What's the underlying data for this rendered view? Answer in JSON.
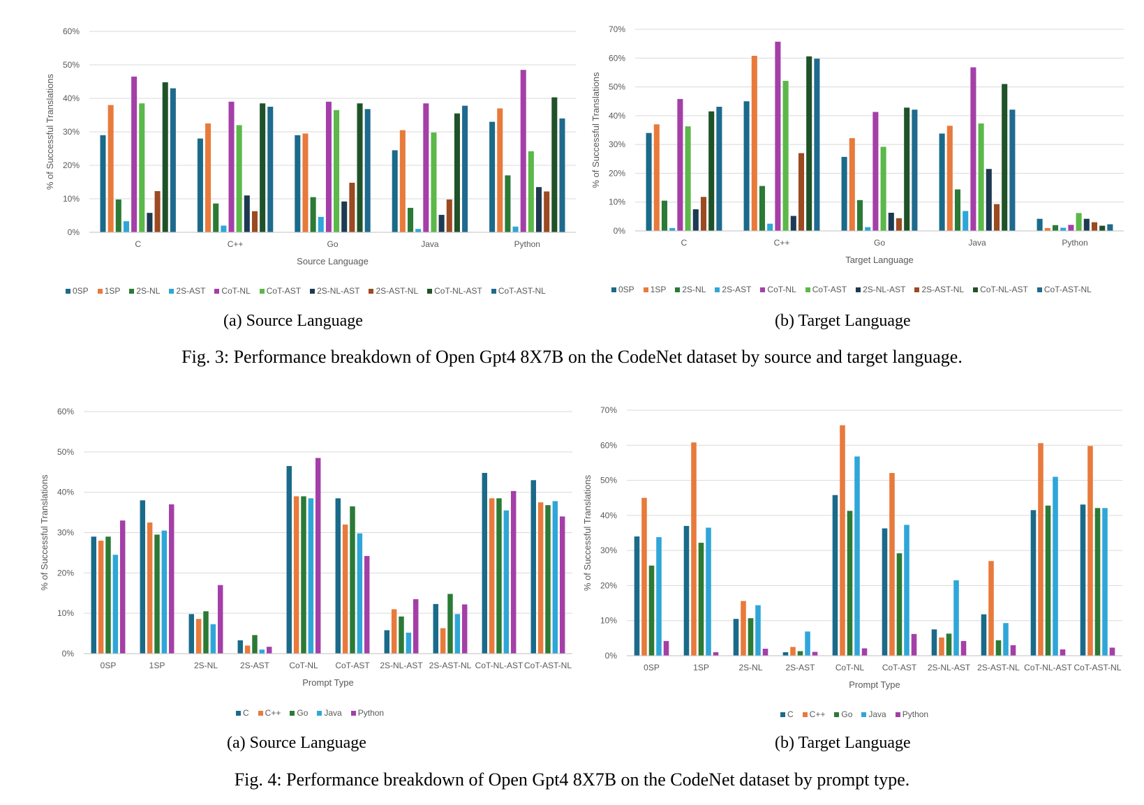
{
  "colors": {
    "0SP": "#1a6a8a",
    "1SP": "#e87a3c",
    "2S-NL": "#2b7a36",
    "2S-AST": "#2fa6d8",
    "CoT-NL": "#a43fa8",
    "CoT-AST": "#5bb849",
    "2S-NL-AST": "#1d3a52",
    "2S-AST-NL": "#9b4a21",
    "CoT-NL-AST": "#1f5228",
    "CoT-AST-NL": "#1f6a8e",
    "C": "#1a6a8a",
    "C++": "#e87a3c",
    "Go": "#2b7a36",
    "Java": "#2fa6d8",
    "Python": "#a43fa8"
  },
  "captions": {
    "fig3": "Fig. 3: Performance breakdown of Open Gpt4 8X7B on the CodeNet dataset by source and target language.",
    "fig4": "Fig. 4: Performance breakdown of Open Gpt4 8X7B on the CodeNet dataset by prompt type.",
    "fig3a": "(a) Source Language",
    "fig3b": "(b) Target Language",
    "fig4a": "(a) Source Language",
    "fig4b": "(b) Target Language"
  },
  "chart_data": [
    {
      "id": "fig3a",
      "type": "bar",
      "xlabel": "Source Language",
      "ylabel": "% of Successful Translations",
      "ylim": [
        0,
        60
      ],
      "yticks": [
        0,
        10,
        20,
        30,
        40,
        50,
        60
      ],
      "grid": true,
      "legend_position": "bottom",
      "categories": [
        "C",
        "C++",
        "Go",
        "Java",
        "Python"
      ],
      "series": [
        {
          "name": "0SP",
          "values": [
            29,
            28,
            29,
            24.5,
            33
          ]
        },
        {
          "name": "1SP",
          "values": [
            38,
            32.5,
            29.5,
            30.5,
            37
          ]
        },
        {
          "name": "2S-NL",
          "values": [
            9.8,
            8.6,
            10.5,
            7.3,
            17
          ]
        },
        {
          "name": "2S-AST",
          "values": [
            3.3,
            2,
            4.6,
            1,
            1.7
          ]
        },
        {
          "name": "CoT-NL",
          "values": [
            46.5,
            39,
            39,
            38.5,
            48.5
          ]
        },
        {
          "name": "CoT-AST",
          "values": [
            38.5,
            32,
            36.5,
            29.8,
            24.2
          ]
        },
        {
          "name": "2S-NL-AST",
          "values": [
            5.8,
            11,
            9.2,
            5.2,
            13.5
          ]
        },
        {
          "name": "2S-AST-NL",
          "values": [
            12.3,
            6.3,
            14.8,
            9.8,
            12.2
          ]
        },
        {
          "name": "CoT-NL-AST",
          "values": [
            44.8,
            38.5,
            38.5,
            35.5,
            40.3
          ]
        },
        {
          "name": "CoT-AST-NL",
          "values": [
            43,
            37.5,
            36.8,
            37.8,
            34
          ]
        }
      ]
    },
    {
      "id": "fig3b",
      "type": "bar",
      "xlabel": "Target Language",
      "ylabel": "% of Successful Translations",
      "ylim": [
        0,
        70
      ],
      "yticks": [
        0,
        10,
        20,
        30,
        40,
        50,
        60,
        70
      ],
      "grid": true,
      "legend_position": "bottom",
      "categories": [
        "C",
        "C++",
        "Go",
        "Java",
        "Python"
      ],
      "series": [
        {
          "name": "0SP",
          "values": [
            34,
            45,
            25.7,
            33.8,
            4.2
          ]
        },
        {
          "name": "1SP",
          "values": [
            37,
            60.8,
            32.2,
            36.5,
            1
          ]
        },
        {
          "name": "2S-NL",
          "values": [
            10.5,
            15.6,
            10.7,
            14.4,
            2
          ]
        },
        {
          "name": "2S-AST",
          "values": [
            1,
            2.5,
            1.3,
            6.9,
            1.1
          ]
        },
        {
          "name": "CoT-NL",
          "values": [
            45.8,
            65.7,
            41.3,
            56.8,
            2.1
          ]
        },
        {
          "name": "CoT-AST",
          "values": [
            36.3,
            52.1,
            29.2,
            37.3,
            6.2
          ]
        },
        {
          "name": "2S-NL-AST",
          "values": [
            7.5,
            5.2,
            6.3,
            21.5,
            4.2
          ]
        },
        {
          "name": "2S-AST-NL",
          "values": [
            11.8,
            27,
            4.4,
            9.3,
            3
          ]
        },
        {
          "name": "CoT-NL-AST",
          "values": [
            41.5,
            60.6,
            42.8,
            51,
            1.8
          ]
        },
        {
          "name": "CoT-AST-NL",
          "values": [
            43.1,
            59.8,
            42.1,
            42.1,
            2.3
          ]
        }
      ]
    },
    {
      "id": "fig4a",
      "type": "bar",
      "xlabel": "Prompt Type",
      "ylabel": "% of Successful Translations",
      "ylim": [
        0,
        60
      ],
      "yticks": [
        0,
        10,
        20,
        30,
        40,
        50,
        60
      ],
      "grid": true,
      "legend_position": "bottom",
      "categories": [
        "0SP",
        "1SP",
        "2S-NL",
        "2S-AST",
        "CoT-NL",
        "CoT-AST",
        "2S-NL-AST",
        "2S-AST-NL",
        "CoT-NL-AST",
        "CoT-AST-NL"
      ],
      "series": [
        {
          "name": "C",
          "values": [
            29,
            38,
            9.8,
            3.3,
            46.5,
            38.5,
            5.8,
            12.3,
            44.8,
            43
          ]
        },
        {
          "name": "C++",
          "values": [
            28,
            32.5,
            8.6,
            2,
            39,
            32,
            11,
            6.3,
            38.5,
            37.5
          ]
        },
        {
          "name": "Go",
          "values": [
            29,
            29.5,
            10.5,
            4.6,
            39,
            36.5,
            9.2,
            14.8,
            38.5,
            36.8
          ]
        },
        {
          "name": "Java",
          "values": [
            24.5,
            30.5,
            7.3,
            1,
            38.5,
            29.8,
            5.2,
            9.8,
            35.5,
            37.8
          ]
        },
        {
          "name": "Python",
          "values": [
            33,
            37,
            17,
            1.7,
            48.5,
            24.2,
            13.5,
            12.2,
            40.3,
            34
          ]
        }
      ]
    },
    {
      "id": "fig4b",
      "type": "bar",
      "xlabel": "Prompt Type",
      "ylabel": "% of Successful Translations",
      "ylim": [
        0,
        70
      ],
      "yticks": [
        0,
        10,
        20,
        30,
        40,
        50,
        60,
        70
      ],
      "grid": true,
      "legend_position": "bottom",
      "categories": [
        "0SP",
        "1SP",
        "2S-NL",
        "2S-AST",
        "CoT-NL",
        "CoT-AST",
        "2S-NL-AST",
        "2S-AST-NL",
        "CoT-NL-AST",
        "CoT-AST-NL"
      ],
      "series": [
        {
          "name": "C",
          "values": [
            34,
            37,
            10.5,
            1,
            45.8,
            36.3,
            7.5,
            11.8,
            41.5,
            43.1
          ]
        },
        {
          "name": "C++",
          "values": [
            45,
            60.8,
            15.6,
            2.5,
            65.7,
            52.1,
            5.2,
            27,
            60.6,
            59.8
          ]
        },
        {
          "name": "Go",
          "values": [
            25.7,
            32.2,
            10.7,
            1.3,
            41.3,
            29.2,
            6.3,
            4.4,
            42.8,
            42.1
          ]
        },
        {
          "name": "Java",
          "values": [
            33.8,
            36.5,
            14.4,
            6.9,
            56.8,
            37.3,
            21.5,
            9.3,
            51,
            42.1
          ]
        },
        {
          "name": "Python",
          "values": [
            4.2,
            1,
            2,
            1.1,
            2.1,
            6.2,
            4.2,
            3,
            1.8,
            2.3
          ]
        }
      ]
    }
  ]
}
